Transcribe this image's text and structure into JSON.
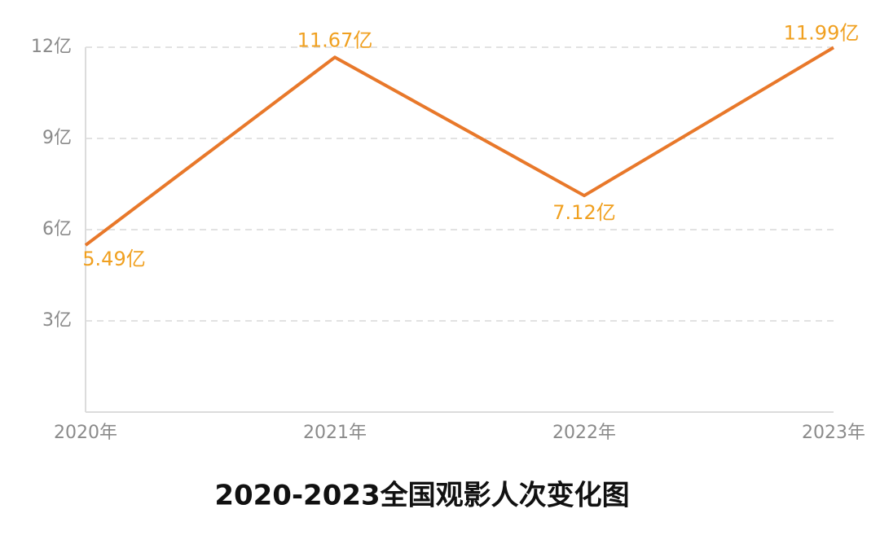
{
  "chart_data": {
    "type": "line",
    "title": "2020-2023全国观影人次变化图",
    "categories": [
      "2020年",
      "2021年",
      "2022年",
      "2023年"
    ],
    "values": [
      5.49,
      11.67,
      7.12,
      11.99
    ],
    "value_labels": [
      "5.49亿",
      "11.67亿",
      "7.12亿",
      "11.99亿"
    ],
    "color": "#e8782a",
    "ylim": [
      0,
      12
    ],
    "yticks": [
      {
        "value": 3,
        "label": "3亿"
      },
      {
        "value": 6,
        "label": "6亿"
      },
      {
        "value": 9,
        "label": "9亿"
      },
      {
        "value": 12,
        "label": "12亿"
      }
    ],
    "grid": true
  }
}
